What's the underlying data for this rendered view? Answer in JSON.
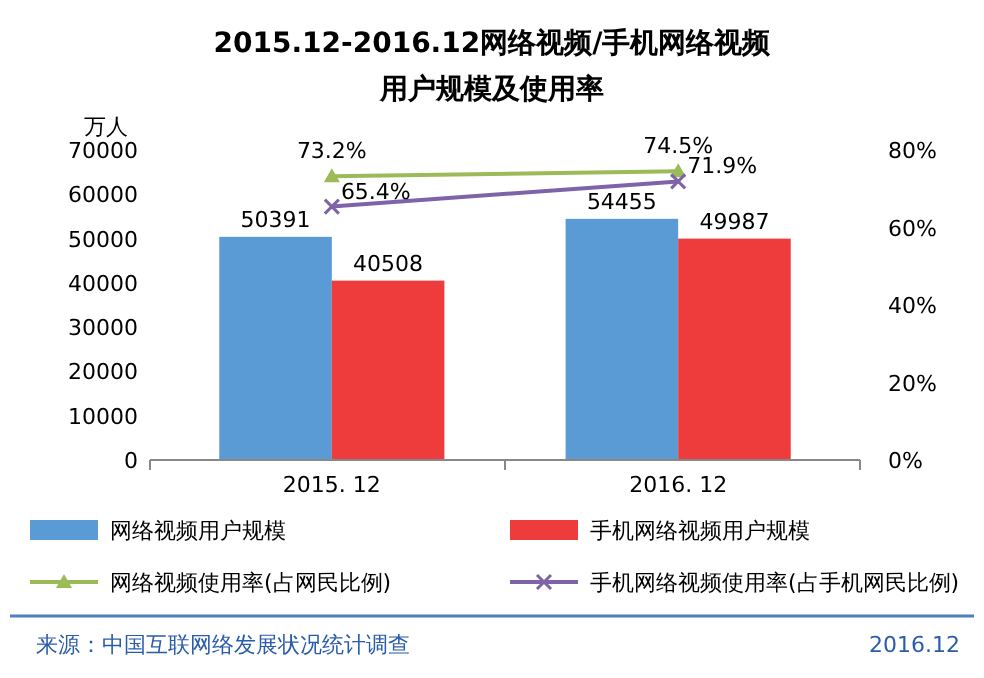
{
  "chart_data": {
    "type": "bar",
    "title": "2015.12-2016.12网络视频/手机网络视频用户规模及使用率",
    "ylabel": "万人",
    "categories": [
      "2015. 12",
      "2016. 12"
    ],
    "series": [
      {
        "name": "网络视频用户规模",
        "color": "#5b9bd5",
        "values": [
          50391,
          54455
        ],
        "value_labels": [
          "50391",
          "54455"
        ]
      },
      {
        "name": "手机网络视频用户规模",
        "color": "#ee3b3b",
        "values": [
          40508,
          49987
        ],
        "value_labels": [
          "40508",
          "49987"
        ]
      },
      {
        "name": "网络视频使用率(占网民比例)",
        "type": "line",
        "axis": "y2",
        "marker": "triangle",
        "color": "#9bbb59",
        "values": [
          73.2,
          74.5
        ],
        "value_labels": [
          "73.2%",
          "74.5%"
        ]
      },
      {
        "name": "手机网络视频使用率(占手机网民比例)",
        "type": "line",
        "axis": "y2",
        "marker": "cross",
        "color": "#7e63a8",
        "values": [
          65.4,
          71.9
        ],
        "value_labels": [
          "65.4%",
          "71.9%"
        ]
      }
    ],
    "ylim": [
      0,
      70000
    ],
    "yticks": [
      0,
      10000,
      20000,
      30000,
      40000,
      50000,
      60000,
      70000
    ],
    "y2lim": [
      0,
      80
    ],
    "y2ticks": [
      {
        "value": 0,
        "label": "0%"
      },
      {
        "value": 20,
        "label": "20%"
      },
      {
        "value": 40,
        "label": "40%"
      },
      {
        "value": 60,
        "label": "60%"
      },
      {
        "value": 80,
        "label": "80%"
      }
    ],
    "legend": "bottom",
    "grid": false,
    "annotations": [
      "来源：中国互联网络发展状况统计调查",
      "2016.12"
    ]
  }
}
